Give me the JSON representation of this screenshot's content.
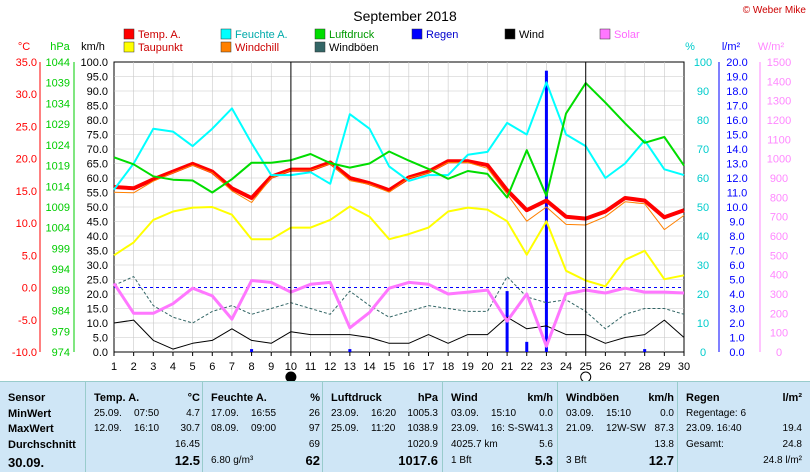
{
  "watermark": "© Weber Mike",
  "chart_data": {
    "type": "line",
    "title": "September 2018",
    "x": [
      1,
      2,
      3,
      4,
      5,
      6,
      7,
      8,
      9,
      10,
      11,
      12,
      13,
      14,
      15,
      16,
      17,
      18,
      19,
      20,
      21,
      22,
      23,
      24,
      25,
      26,
      27,
      28,
      29,
      30
    ],
    "x_ticks": [
      "1",
      "2",
      "3",
      "4",
      "5",
      "6",
      "7",
      "8",
      "9",
      "10",
      "11",
      "12",
      "13",
      "14",
      "15",
      "16",
      "17",
      "18",
      "19",
      "20",
      "21",
      "22",
      "23",
      "24",
      "25",
      "26",
      "27",
      "28",
      "29",
      "30"
    ],
    "axes": {
      "temp": {
        "label": "°C",
        "color": "#ff0000",
        "range": [
          -10,
          35
        ],
        "ticks": [
          "35.0",
          "30.0",
          "25.0",
          "20.0",
          "15.0",
          "10.0",
          "5.0",
          "0.0",
          "-5.0",
          "-10.0"
        ]
      },
      "pressure": {
        "label": "hPa",
        "color": "#00cc00",
        "range": [
          974,
          1044
        ],
        "ticks": [
          "1044",
          "1039",
          "1034",
          "1029",
          "1024",
          "1019",
          "1014",
          "1009",
          "1004",
          "999",
          "994",
          "989",
          "984",
          "979",
          "974"
        ]
      },
      "wind": {
        "label": "km/h",
        "color": "#000000",
        "range": [
          0,
          100
        ],
        "ticks": [
          "100.0",
          "95.0",
          "90.0",
          "85.0",
          "80.0",
          "75.0",
          "70.0",
          "65.0",
          "60.0",
          "55.0",
          "50.0",
          "45.0",
          "40.0",
          "35.0",
          "30.0",
          "25.0",
          "20.0",
          "15.0",
          "10.0",
          "5.0",
          "0.0"
        ]
      },
      "humidity": {
        "label": "%",
        "color": "#00cccc",
        "range": [
          0,
          100
        ],
        "ticks": [
          "100",
          "90",
          "80",
          "70",
          "60",
          "50",
          "40",
          "30",
          "20",
          "10",
          "0"
        ]
      },
      "rain": {
        "label": "l/m²",
        "color": "#0000ff",
        "range": [
          0,
          20
        ],
        "ticks": [
          "20.0",
          "19.0",
          "18.0",
          "17.0",
          "16.0",
          "15.0",
          "14.0",
          "13.0",
          "12.0",
          "11.0",
          "10.0",
          "9.0",
          "8.0",
          "7.0",
          "6.0",
          "5.0",
          "4.0",
          "3.0",
          "2.0",
          "1.0",
          "0.0"
        ]
      },
      "solar": {
        "label": "W/m²",
        "color": "#ff88ff",
        "range": [
          0,
          1500
        ],
        "ticks": [
          "1500",
          "1400",
          "1300",
          "1200",
          "1100",
          "1000",
          "900",
          "800",
          "700",
          "600",
          "500",
          "400",
          "300",
          "200",
          "100",
          "0"
        ]
      }
    },
    "legend": [
      {
        "name": "Temp. A.",
        "color": "#ff0000"
      },
      {
        "name": "Feuchte A.",
        "color": "#00ffff"
      },
      {
        "name": "Luftdruck",
        "color": "#00dd00"
      },
      {
        "name": "Regen",
        "color": "#0000ff"
      },
      {
        "name": "Wind",
        "color": "#000000"
      },
      {
        "name": "Solar",
        "color": "#ff77ff"
      },
      {
        "name": "Taupunkt",
        "color": "#ffff00"
      },
      {
        "name": "Windchill",
        "color": "#ff8000"
      },
      {
        "name": "Windböen",
        "color": "#336666"
      }
    ],
    "series": [
      {
        "name": "Temp. A.",
        "axis": "temp",
        "color": "#ff0000",
        "width": 4,
        "values": [
          15.6,
          15.4,
          16.8,
          18,
          19.2,
          18,
          15.4,
          13.9,
          17.2,
          18.3,
          18.3,
          19.4,
          17,
          16.2,
          15.1,
          17.1,
          18,
          19.6,
          19.6,
          19,
          15.1,
          12,
          13.5,
          11,
          10.7,
          11.8,
          13.9,
          13.5,
          10.9,
          12
        ]
      },
      {
        "name": "Windchill",
        "axis": "temp",
        "color": "#ff8000",
        "width": 1,
        "values": [
          14.8,
          14.7,
          16.5,
          17.8,
          19,
          17.8,
          15,
          13.2,
          17,
          18.2,
          18.2,
          19.2,
          16.6,
          16,
          14.8,
          17,
          17.8,
          19.4,
          19.4,
          18.5,
          14.5,
          10.3,
          12.5,
          9.8,
          9.7,
          11,
          13.3,
          13,
          9,
          11.2
        ]
      },
      {
        "name": "Taupunkt",
        "axis": "temp",
        "color": "#ffff00",
        "width": 2,
        "values": [
          5,
          7,
          10.5,
          11.8,
          12.4,
          12.5,
          11.3,
          7.5,
          7.5,
          9.3,
          9.3,
          10.5,
          12.6,
          11,
          7.5,
          8.3,
          9.3,
          11.8,
          12.4,
          12.1,
          10.3,
          5.1,
          10.3,
          2.6,
          1.1,
          0.2,
          4.3,
          5.7,
          1.3,
          1.9
        ]
      },
      {
        "name": "Feuchte A.",
        "axis": "humidity",
        "color": "#00ffff",
        "width": 2,
        "values": [
          56,
          65,
          77,
          76,
          71,
          77,
          84,
          72,
          61,
          61,
          62,
          58,
          82,
          77,
          64,
          59,
          61,
          61,
          68,
          69,
          79,
          75,
          93,
          75,
          71,
          60,
          65,
          73,
          63,
          61
        ]
      },
      {
        "name": "Luftdruck",
        "axis": "pressure",
        "color": "#00dd00",
        "width": 2,
        "values": [
          1021,
          1019.3,
          1016.4,
          1015.6,
          1015.4,
          1012.5,
          1015.7,
          1019.7,
          1019.7,
          1020.3,
          1021.8,
          1019.6,
          1018.5,
          1019.5,
          1022.4,
          1020.2,
          1018.2,
          1015.8,
          1017.7,
          1017,
          1011.3,
          1022.7,
          1011.7,
          1031.6,
          1038.9,
          1034.2,
          1029.2,
          1024.5,
          1025.9,
          1019
        ]
      },
      {
        "name": "Windböen",
        "axis": "wind",
        "color": "#336666",
        "width": 1,
        "dash": true,
        "values": [
          23,
          26,
          16,
          12,
          10,
          14,
          16,
          13,
          15,
          17,
          15,
          13,
          21,
          16,
          12,
          14,
          16,
          15,
          14,
          14,
          26,
          19,
          17,
          18,
          14,
          8,
          13,
          15,
          15,
          13
        ]
      },
      {
        "name": "Wind",
        "axis": "wind",
        "color": "#000000",
        "width": 1,
        "values": [
          10,
          11,
          4,
          1,
          3,
          4,
          8,
          4,
          3,
          7,
          6,
          6,
          6,
          5,
          3,
          3,
          6,
          3,
          6,
          6,
          12,
          8,
          9,
          6,
          6,
          3,
          5,
          6,
          11,
          5
        ]
      },
      {
        "name": "Solar",
        "axis": "solar",
        "color": "#ff77ff",
        "width": 3,
        "values": [
          355,
          200,
          200,
          250,
          330,
          290,
          170,
          370,
          360,
          310,
          350,
          360,
          125,
          205,
          330,
          360,
          350,
          300,
          310,
          320,
          160,
          300,
          30,
          300,
          320,
          305,
          330,
          310,
          310,
          305
        ]
      }
    ],
    "bars": [
      {
        "name": "Regen",
        "axis": "rain",
        "color": "#0000ff",
        "values": [
          0,
          0,
          0,
          0,
          0,
          0,
          0,
          0.2,
          0,
          0,
          0,
          0,
          0.2,
          0,
          0,
          0,
          0,
          0,
          0,
          0,
          4.2,
          0.7,
          19.4,
          0,
          0,
          0,
          0,
          0.2,
          0,
          0
        ]
      }
    ],
    "moons": [
      {
        "day": 10,
        "phase": "new"
      },
      {
        "day": 25,
        "phase": "full"
      }
    ]
  },
  "table": {
    "sensor": {
      "header": "Sensor",
      "rows": [
        "MinWert",
        "MaxWert",
        "Durchschnitt"
      ],
      "footer": "30.09."
    },
    "temp": {
      "header": "Temp. A.",
      "unit": "°C",
      "rows": [
        [
          "25.09.",
          "07:50",
          "4.7"
        ],
        [
          "12.09.",
          "16:10",
          "30.7"
        ],
        [
          "",
          "",
          "16.45"
        ]
      ],
      "footer": "12.5"
    },
    "hum": {
      "header": "Feuchte A.",
      "unit": "%",
      "rows": [
        [
          "17.09.",
          "16:55",
          "26"
        ],
        [
          "08.09.",
          "09:00",
          "97"
        ],
        [
          "",
          "",
          "69"
        ]
      ],
      "footer_left": "6.80 g/m³",
      "footer": "62"
    },
    "press": {
      "header": "Luftdruck",
      "unit": "hPa",
      "rows": [
        [
          "23.09.",
          "16:20",
          "1005.3"
        ],
        [
          "25.09.",
          "11:20",
          "1038.9"
        ],
        [
          "",
          "",
          "1020.9"
        ]
      ],
      "footer": "1017.6"
    },
    "wind": {
      "header": "Wind",
      "unit": "km/h",
      "rows": [
        [
          "03.09.",
          "15:10",
          "0.0"
        ],
        [
          "23.09.",
          "16: S-SW",
          "41.3"
        ],
        [
          "4025.7 km",
          "",
          "5.6"
        ]
      ],
      "footer_left": "1 Bft",
      "footer": "5.3"
    },
    "gust": {
      "header": "Windböen",
      "unit": "km/h",
      "rows": [
        [
          "03.09.",
          "15:10",
          "0.0"
        ],
        [
          "21.09.",
          "12W-SW",
          "87.3"
        ],
        [
          "",
          "",
          "13.8"
        ]
      ],
      "footer_left": "3 Bft",
      "footer": "12.7"
    },
    "rain": {
      "header": "Regen",
      "unit": "l/m²",
      "rows": [
        [
          "Regentage: 6",
          ""
        ],
        [
          "23.09.  16:40",
          "19.4"
        ],
        [
          "Gesamt:",
          "24.8"
        ]
      ],
      "footer": "24.8 l/m²"
    }
  }
}
